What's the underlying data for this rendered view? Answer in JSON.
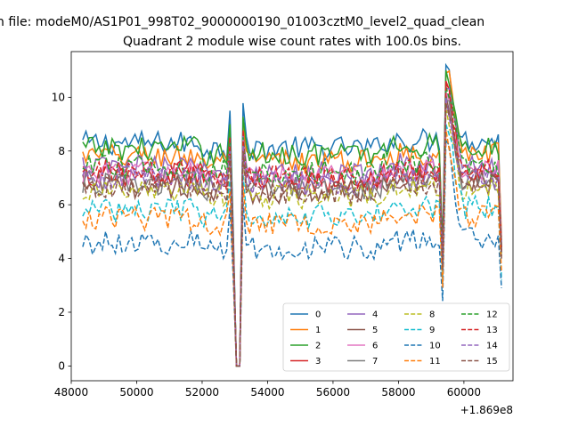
{
  "chart_data": {
    "type": "line",
    "suptitle": "n file: modeM0/AS1P01_998T02_9000000190_01003cztM0_level2_quad_clean",
    "title": "Quadrant 2 module wise count rates with 100.0s bins.",
    "xlabel": "",
    "ylabel": "",
    "x_offset_label": "+1.869e8",
    "xlim": [
      48000,
      61500
    ],
    "ylim": [
      -0.55,
      11.7
    ],
    "x_ticks": [
      48000,
      50000,
      52000,
      54000,
      56000,
      58000,
      60000
    ],
    "y_ticks": [
      0,
      2,
      4,
      6,
      8,
      10
    ],
    "legend_position": "lower-right",
    "legend_columns": 4,
    "x_start": 48350,
    "x_end": 61150,
    "bin": 100,
    "gaps": [
      {
        "start": 52850,
        "end": 53350,
        "dip_value": 0,
        "flat_start": 53050,
        "flat_end": 53200
      },
      {
        "start": 59350,
        "end": 59500
      }
    ],
    "series": [
      {
        "name": "0",
        "color": "#1f77b4",
        "dash": "solid",
        "base": 8.1,
        "peak": 9.8,
        "spike": 11.2,
        "end": 4.2
      },
      {
        "name": "1",
        "color": "#ff7f0e",
        "dash": "solid",
        "base": 7.6,
        "peak": 9.0,
        "spike": 10.9,
        "end": 4.8
      },
      {
        "name": "2",
        "color": "#2ca02c",
        "dash": "solid",
        "base": 7.9,
        "peak": 9.3,
        "spike": 11.0,
        "end": 4.5
      },
      {
        "name": "3",
        "color": "#d62728",
        "dash": "solid",
        "base": 6.9,
        "peak": 8.8,
        "spike": 10.6,
        "end": 4.3
      },
      {
        "name": "4",
        "color": "#9467bd",
        "dash": "solid",
        "base": 7.2,
        "peak": 8.6,
        "spike": 10.3,
        "end": 4.6
      },
      {
        "name": "5",
        "color": "#8c564b",
        "dash": "solid",
        "base": 6.5,
        "peak": 8.4,
        "spike": 10.1,
        "end": 4.2
      },
      {
        "name": "6",
        "color": "#e377c2",
        "dash": "solid",
        "base": 7.0,
        "peak": 8.5,
        "spike": 10.2,
        "end": 4.4
      },
      {
        "name": "7",
        "color": "#7f7f7f",
        "dash": "solid",
        "base": 6.6,
        "peak": 8.2,
        "spike": 9.9,
        "end": 4.3
      },
      {
        "name": "8",
        "color": "#bcbd22",
        "dash": "dashed",
        "base": 6.3,
        "peak": 7.9,
        "spike": 9.6,
        "end": 4.0
      },
      {
        "name": "9",
        "color": "#17becf",
        "dash": "dashed",
        "base": 5.6,
        "peak": 7.2,
        "spike": 9.0,
        "end": 3.2
      },
      {
        "name": "10",
        "color": "#1f77b4",
        "dash": "dashed",
        "base": 4.4,
        "peak": 6.2,
        "spike": 8.4,
        "end": 2.9
      },
      {
        "name": "11",
        "color": "#ff7f0e",
        "dash": "dashed",
        "base": 5.3,
        "peak": 6.8,
        "spike": 8.8,
        "end": 3.5
      },
      {
        "name": "12",
        "color": "#2ca02c",
        "dash": "dashed",
        "base": 7.2,
        "peak": 8.6,
        "spike": 10.4,
        "end": 4.4
      },
      {
        "name": "13",
        "color": "#d62728",
        "dash": "dashed",
        "base": 7.0,
        "peak": 8.5,
        "spike": 10.5,
        "end": 4.3
      },
      {
        "name": "14",
        "color": "#9467bd",
        "dash": "dashed",
        "base": 6.8,
        "peak": 8.3,
        "spike": 10.0,
        "end": 4.1
      },
      {
        "name": "15",
        "color": "#8c564b",
        "dash": "dashed",
        "base": 6.5,
        "peak": 8.1,
        "spike": 9.8,
        "end": 4.0
      }
    ]
  }
}
